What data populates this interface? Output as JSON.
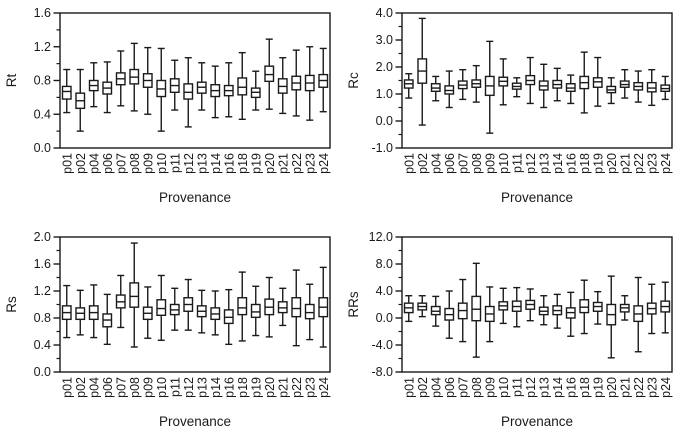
{
  "figure": {
    "background": "#ffffff",
    "line_color": "#1a1a1a",
    "text_color": "#1a1a1a"
  },
  "chart_data": {
    "type": "boxplot",
    "layout": "2x2-grid",
    "grid": false,
    "legend": "none",
    "xlabel": "Provenance",
    "categories": [
      "p01",
      "p02",
      "p04",
      "p06",
      "p07",
      "p08",
      "p09",
      "p10",
      "p11",
      "p12",
      "p13",
      "p14",
      "p16",
      "p18",
      "p19",
      "p20",
      "p21",
      "p22",
      "p23",
      "p24"
    ],
    "box_format": [
      "whisker_low",
      "q1",
      "median",
      "q3",
      "whisker_high"
    ],
    "panels": [
      {
        "ylabel": "Rt",
        "ylim": [
          0.0,
          1.6
        ],
        "ytick_labels": [
          "0.0",
          "0.4",
          "0.8",
          "1.2",
          "1.6"
        ],
        "minor_tick_step": 0.2,
        "boxes": [
          [
            0.42,
            0.58,
            0.67,
            0.73,
            0.93
          ],
          [
            0.2,
            0.47,
            0.56,
            0.65,
            0.93
          ],
          [
            0.49,
            0.68,
            0.74,
            0.8,
            1.01
          ],
          [
            0.42,
            0.64,
            0.71,
            0.78,
            1.02
          ],
          [
            0.5,
            0.75,
            0.82,
            0.89,
            1.15
          ],
          [
            0.44,
            0.76,
            0.84,
            0.93,
            1.24
          ],
          [
            0.4,
            0.72,
            0.8,
            0.88,
            1.19
          ],
          [
            0.2,
            0.61,
            0.7,
            0.8,
            1.18
          ],
          [
            0.45,
            0.66,
            0.74,
            0.82,
            1.04
          ],
          [
            0.25,
            0.58,
            0.66,
            0.76,
            1.07
          ],
          [
            0.45,
            0.65,
            0.72,
            0.78,
            1.01
          ],
          [
            0.36,
            0.61,
            0.68,
            0.75,
            0.97
          ],
          [
            0.37,
            0.62,
            0.68,
            0.74,
            1.01
          ],
          [
            0.34,
            0.63,
            0.72,
            0.83,
            1.13
          ],
          [
            0.45,
            0.6,
            0.66,
            0.71,
            0.91
          ],
          [
            0.46,
            0.79,
            0.87,
            0.97,
            1.29
          ],
          [
            0.41,
            0.65,
            0.73,
            0.82,
            1.07
          ],
          [
            0.38,
            0.69,
            0.77,
            0.85,
            1.16
          ],
          [
            0.33,
            0.68,
            0.77,
            0.86,
            1.2
          ],
          [
            0.43,
            0.72,
            0.8,
            0.87,
            1.18
          ]
        ]
      },
      {
        "ylabel": "Rc",
        "ylim": [
          -1.0,
          4.0
        ],
        "ytick_labels": [
          "-1.0",
          "0.0",
          "1.0",
          "2.0",
          "3.0",
          "4.0"
        ],
        "minor_tick_step": 0.5,
        "boxes": [
          [
            0.85,
            1.22,
            1.38,
            1.52,
            1.75
          ],
          [
            -0.15,
            1.4,
            1.85,
            2.3,
            3.8
          ],
          [
            0.75,
            1.1,
            1.22,
            1.38,
            1.65
          ],
          [
            0.5,
            1.0,
            1.13,
            1.3,
            1.85
          ],
          [
            0.8,
            1.2,
            1.33,
            1.48,
            1.9
          ],
          [
            0.7,
            1.25,
            1.38,
            1.52,
            2.05
          ],
          [
            -0.45,
            0.95,
            1.3,
            1.65,
            2.95
          ],
          [
            0.6,
            1.3,
            1.47,
            1.62,
            2.3
          ],
          [
            0.9,
            1.18,
            1.28,
            1.4,
            1.6
          ],
          [
            0.65,
            1.35,
            1.5,
            1.68,
            2.35
          ],
          [
            0.5,
            1.15,
            1.3,
            1.48,
            2.1
          ],
          [
            0.75,
            1.22,
            1.35,
            1.5,
            1.95
          ],
          [
            0.65,
            1.1,
            1.22,
            1.38,
            1.7
          ],
          [
            0.3,
            1.2,
            1.42,
            1.65,
            2.55
          ],
          [
            0.55,
            1.25,
            1.45,
            1.6,
            2.35
          ],
          [
            0.65,
            1.05,
            1.15,
            1.28,
            1.6
          ],
          [
            0.85,
            1.25,
            1.35,
            1.48,
            1.9
          ],
          [
            0.7,
            1.15,
            1.28,
            1.42,
            1.85
          ],
          [
            0.58,
            1.08,
            1.22,
            1.42,
            1.9
          ],
          [
            0.8,
            1.1,
            1.2,
            1.33,
            1.65
          ]
        ]
      },
      {
        "ylabel": "Rs",
        "ylim": [
          0.0,
          2.0
        ],
        "ytick_labels": [
          "0.0",
          "0.4",
          "0.8",
          "1.2",
          "1.6",
          "2.0"
        ],
        "minor_tick_step": 0.2,
        "boxes": [
          [
            0.51,
            0.78,
            0.88,
            0.98,
            1.28
          ],
          [
            0.55,
            0.78,
            0.87,
            0.95,
            1.21
          ],
          [
            0.51,
            0.78,
            0.88,
            0.98,
            1.29
          ],
          [
            0.41,
            0.67,
            0.77,
            0.86,
            1.15
          ],
          [
            0.66,
            0.95,
            1.04,
            1.14,
            1.43
          ],
          [
            0.37,
            0.96,
            1.12,
            1.32,
            1.91
          ],
          [
            0.5,
            0.78,
            0.87,
            0.96,
            1.26
          ],
          [
            0.47,
            0.84,
            0.94,
            1.07,
            1.43
          ],
          [
            0.62,
            0.85,
            0.92,
            1.0,
            1.24
          ],
          [
            0.62,
            0.9,
            1.0,
            1.1,
            1.37
          ],
          [
            0.58,
            0.82,
            0.9,
            0.98,
            1.21
          ],
          [
            0.55,
            0.78,
            0.86,
            0.95,
            1.2
          ],
          [
            0.41,
            0.72,
            0.81,
            0.92,
            1.22
          ],
          [
            0.46,
            0.85,
            0.95,
            1.1,
            1.48
          ],
          [
            0.54,
            0.81,
            0.89,
            1.0,
            1.27
          ],
          [
            0.52,
            0.85,
            0.96,
            1.08,
            1.4
          ],
          [
            0.69,
            0.88,
            0.95,
            1.04,
            1.24
          ],
          [
            0.39,
            0.82,
            0.94,
            1.1,
            1.51
          ],
          [
            0.48,
            0.79,
            0.88,
            1.0,
            1.3
          ],
          [
            0.37,
            0.82,
            0.96,
            1.1,
            1.55
          ]
        ]
      },
      {
        "ylabel": "RRs",
        "ylim": [
          -8.0,
          12.0
        ],
        "ytick_labels": [
          "-8.0",
          "-4.0",
          "0.0",
          "4.0",
          "8.0",
          "12.0"
        ],
        "minor_tick_step": 2.0,
        "boxes": [
          [
            -0.5,
            0.8,
            1.5,
            2.2,
            3.3
          ],
          [
            0.2,
            1.2,
            1.7,
            2.2,
            3.3
          ],
          [
            -1.2,
            0.5,
            1.0,
            1.7,
            3.2
          ],
          [
            -3.0,
            -0.3,
            0.5,
            1.4,
            4.0
          ],
          [
            -3.5,
            -0.1,
            1.1,
            2.2,
            5.7
          ],
          [
            -5.8,
            -0.4,
            1.3,
            3.2,
            8.1
          ],
          [
            -3.5,
            -0.5,
            0.6,
            1.7,
            4.6
          ],
          [
            -0.8,
            1.2,
            1.8,
            2.4,
            4.4
          ],
          [
            -1.3,
            1.0,
            1.7,
            2.5,
            4.5
          ],
          [
            -0.4,
            1.3,
            2.0,
            2.6,
            4.3
          ],
          [
            -1.0,
            0.5,
            1.0,
            1.6,
            3.3
          ],
          [
            -1.5,
            0.5,
            1.1,
            1.8,
            3.5
          ],
          [
            -2.7,
            0.0,
            0.8,
            1.5,
            3.8
          ],
          [
            -2.3,
            0.8,
            1.6,
            2.7,
            5.6
          ],
          [
            -0.9,
            1.0,
            1.7,
            2.3,
            3.9
          ],
          [
            -5.9,
            -1.0,
            0.5,
            2.0,
            6.2
          ],
          [
            -0.3,
            0.9,
            1.5,
            2.0,
            3.3
          ],
          [
            -5.0,
            -0.5,
            0.6,
            1.8,
            6.0
          ],
          [
            -2.3,
            0.6,
            1.4,
            2.2,
            5.0
          ],
          [
            -2.2,
            0.9,
            1.7,
            2.5,
            5.3
          ]
        ]
      }
    ]
  }
}
